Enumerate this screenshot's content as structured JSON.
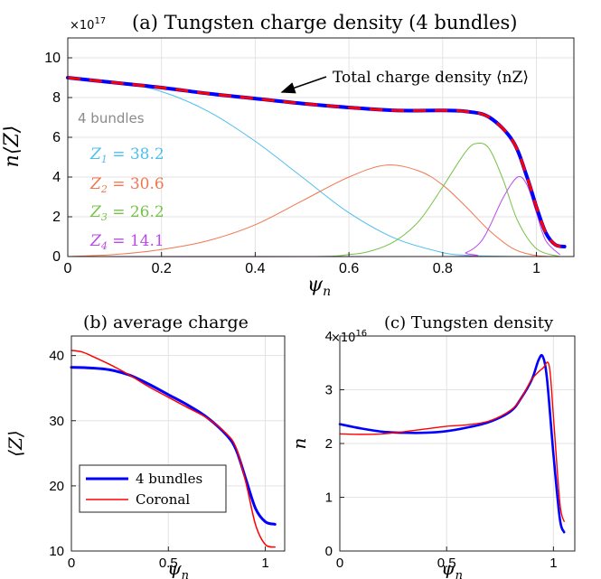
{
  "chart_data": [
    {
      "type": "line",
      "title": "(a) Tungsten charge density (4 bundles)",
      "xlabel": "ψ_n",
      "ylabel": "n⟨Z⟩",
      "y_multiplier": "×10^17",
      "xlim": [
        0,
        1.08
      ],
      "ylim": [
        0,
        11
      ],
      "xticks": [
        0,
        0.2,
        0.4,
        0.6,
        0.8,
        1
      ],
      "yticks": [
        0,
        2,
        4,
        6,
        8,
        10
      ],
      "grid": true,
      "annotation": "Total charge density ⟨nZ⟩",
      "legend_title": "4 bundles",
      "series": [
        {
          "name": "Z_1 = 38.2",
          "color": "#4DBEEE",
          "x": [
            0,
            0.1,
            0.2,
            0.3,
            0.4,
            0.5,
            0.6,
            0.7,
            0.8,
            0.85,
            0.9,
            1.0
          ],
          "y": [
            9.0,
            8.8,
            8.3,
            7.3,
            5.8,
            4.0,
            2.2,
            0.9,
            0.2,
            0.07,
            0.02,
            0
          ]
        },
        {
          "name": "Z_2 = 30.6",
          "color": "#F07850",
          "x": [
            0,
            0.1,
            0.2,
            0.3,
            0.4,
            0.5,
            0.6,
            0.68,
            0.75,
            0.8,
            0.85,
            0.9,
            0.95,
            1.0,
            1.05
          ],
          "y": [
            0,
            0.1,
            0.35,
            0.8,
            1.6,
            2.8,
            4.0,
            4.6,
            4.3,
            3.6,
            2.5,
            1.3,
            0.4,
            0.05,
            0
          ]
        },
        {
          "name": "Z_3 = 26.2",
          "color": "#77C24A",
          "x": [
            0,
            0.5,
            0.6,
            0.65,
            0.7,
            0.75,
            0.8,
            0.85,
            0.875,
            0.9,
            0.93,
            0.96,
            1.0,
            1.05
          ],
          "y": [
            0,
            0,
            0.1,
            0.3,
            0.8,
            1.8,
            3.5,
            5.3,
            5.7,
            5.4,
            3.8,
            1.8,
            0.4,
            0
          ]
        },
        {
          "name": "Z_4 = 14.1",
          "color": "#B84BE8",
          "x": [
            0,
            0.8,
            0.85,
            0.88,
            0.9,
            0.93,
            0.96,
            0.98,
            1.0,
            1.02,
            1.05
          ],
          "y": [
            0,
            0,
            0.2,
            0.7,
            1.5,
            3.0,
            4.0,
            3.6,
            2.2,
            0.8,
            0.1
          ]
        },
        {
          "name": "Total charge density",
          "color": "#0000FF",
          "dash_color": "#FF0000",
          "x": [
            0,
            0.1,
            0.2,
            0.3,
            0.4,
            0.5,
            0.6,
            0.7,
            0.8,
            0.85,
            0.9,
            0.95,
            0.98,
            1.0,
            1.02,
            1.04,
            1.06
          ],
          "y": [
            9.0,
            8.75,
            8.5,
            8.2,
            7.95,
            7.7,
            7.5,
            7.35,
            7.35,
            7.3,
            7.0,
            5.8,
            4.0,
            2.5,
            1.2,
            0.6,
            0.5
          ]
        }
      ]
    },
    {
      "type": "line",
      "title": "(b) average charge",
      "xlabel": "ψ_n",
      "ylabel": "⟨Z⟩",
      "xlim": [
        0,
        1.1
      ],
      "ylim": [
        10,
        43
      ],
      "xticks": [
        0,
        0.5,
        1
      ],
      "xticklabels": [
        "0",
        "0.5",
        "1"
      ],
      "yticks": [
        10,
        20,
        30,
        40
      ],
      "grid": true,
      "legend": "bottom-left",
      "series": [
        {
          "name": "4 bundles",
          "color": "#0000FF",
          "x": [
            0,
            0.1,
            0.2,
            0.3,
            0.4,
            0.5,
            0.6,
            0.7,
            0.8,
            0.85,
            0.9,
            0.95,
            1.0,
            1.05
          ],
          "y": [
            38.2,
            38.1,
            37.8,
            37.0,
            35.6,
            34.0,
            32.4,
            30.5,
            27.8,
            25.5,
            21.0,
            16.5,
            14.5,
            14.1
          ]
        },
        {
          "name": "Coronal",
          "color": "#FF0000",
          "x": [
            0,
            0.05,
            0.1,
            0.2,
            0.3,
            0.4,
            0.5,
            0.6,
            0.7,
            0.8,
            0.85,
            0.9,
            0.95,
            1.0,
            1.05
          ],
          "y": [
            40.8,
            40.6,
            40.0,
            38.6,
            37.0,
            35.2,
            33.6,
            32.0,
            30.4,
            28.0,
            25.8,
            20.5,
            14.0,
            11.0,
            10.6
          ]
        }
      ]
    },
    {
      "type": "line",
      "title": "(c) Tungsten density",
      "xlabel": "ψ_n",
      "ylabel": "n",
      "y_multiplier": "×10^16",
      "xlim": [
        0,
        1.1
      ],
      "ylim": [
        0,
        4
      ],
      "xticks": [
        0,
        0.5,
        1
      ],
      "xticklabels": [
        "0",
        "0.5",
        "1"
      ],
      "yticks": [
        0,
        1,
        2,
        3,
        4
      ],
      "grid": true,
      "series": [
        {
          "name": "4 bundles",
          "color": "#0000FF",
          "x": [
            0,
            0.1,
            0.2,
            0.3,
            0.4,
            0.5,
            0.6,
            0.7,
            0.8,
            0.85,
            0.9,
            0.93,
            0.95,
            0.97,
            1.0,
            1.03,
            1.05
          ],
          "y": [
            2.36,
            2.28,
            2.22,
            2.2,
            2.2,
            2.23,
            2.3,
            2.4,
            2.6,
            2.85,
            3.2,
            3.55,
            3.62,
            3.2,
            1.8,
            0.6,
            0.35
          ]
        },
        {
          "name": "Coronal",
          "color": "#FF0000",
          "x": [
            0,
            0.1,
            0.2,
            0.3,
            0.4,
            0.5,
            0.6,
            0.7,
            0.8,
            0.85,
            0.9,
            0.95,
            0.98,
            1.0,
            1.03,
            1.05
          ],
          "y": [
            2.18,
            2.17,
            2.18,
            2.22,
            2.27,
            2.32,
            2.35,
            2.42,
            2.62,
            2.85,
            3.2,
            3.4,
            3.45,
            2.5,
            0.9,
            0.55
          ]
        }
      ]
    }
  ]
}
